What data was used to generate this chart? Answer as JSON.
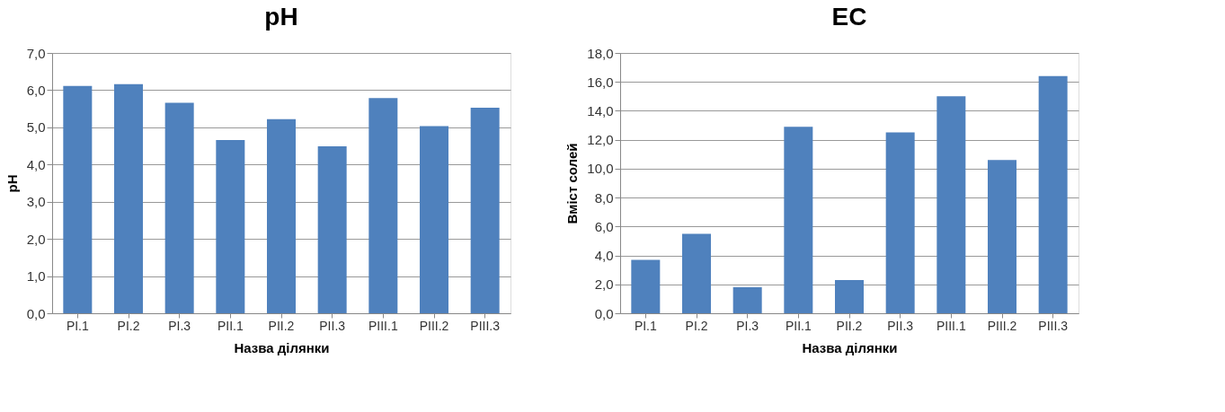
{
  "chart_data": [
    {
      "type": "bar",
      "title": "pH",
      "xlabel": "Назва ділянки",
      "ylabel": "pH",
      "categories": [
        "PI.1",
        "PI.2",
        "PI.3",
        "PII.1",
        "PII.2",
        "PII.3",
        "PIII.1",
        "PIII.2",
        "PIII.3"
      ],
      "series": [
        {
          "color": "#4f81bd",
          "values": [
            6.11,
            6.16,
            5.66,
            4.66,
            5.22,
            4.49,
            5.79,
            5.03,
            5.53
          ]
        }
      ],
      "ylim": [
        0,
        7
      ],
      "yticks": [
        {
          "value": 0,
          "label": "0,0"
        },
        {
          "value": 1,
          "label": "1,0"
        },
        {
          "value": 2,
          "label": "2,0"
        },
        {
          "value": 3,
          "label": "3,0"
        },
        {
          "value": 4,
          "label": "4,0"
        },
        {
          "value": 5,
          "label": "5,0"
        },
        {
          "value": 6,
          "label": "6,0"
        },
        {
          "value": 7,
          "label": "7,0"
        }
      ],
      "grid": "y"
    },
    {
      "type": "bar",
      "title": "EC",
      "xlabel": "Назва ділянки",
      "ylabel": "Вміст солей",
      "categories": [
        "PI.1",
        "PI.2",
        "PI.3",
        "PII.1",
        "PII.2",
        "PII.3",
        "PIII.1",
        "PIII.2",
        "PIII.3"
      ],
      "series": [
        {
          "color": "#4f81bd",
          "values": [
            3.7,
            5.5,
            1.8,
            12.9,
            2.3,
            12.5,
            15.0,
            10.6,
            16.4
          ]
        }
      ],
      "ylim": [
        0,
        18
      ],
      "yticks": [
        {
          "value": 0,
          "label": "0,0"
        },
        {
          "value": 2,
          "label": "2,0"
        },
        {
          "value": 4,
          "label": "4,0"
        },
        {
          "value": 6,
          "label": "6,0"
        },
        {
          "value": 8,
          "label": "8,0"
        },
        {
          "value": 10,
          "label": "10,0"
        },
        {
          "value": 12,
          "label": "12,0"
        },
        {
          "value": 14,
          "label": "14,0"
        },
        {
          "value": 16,
          "label": "16,0"
        },
        {
          "value": 18,
          "label": "18,0"
        }
      ],
      "grid": "y"
    }
  ]
}
